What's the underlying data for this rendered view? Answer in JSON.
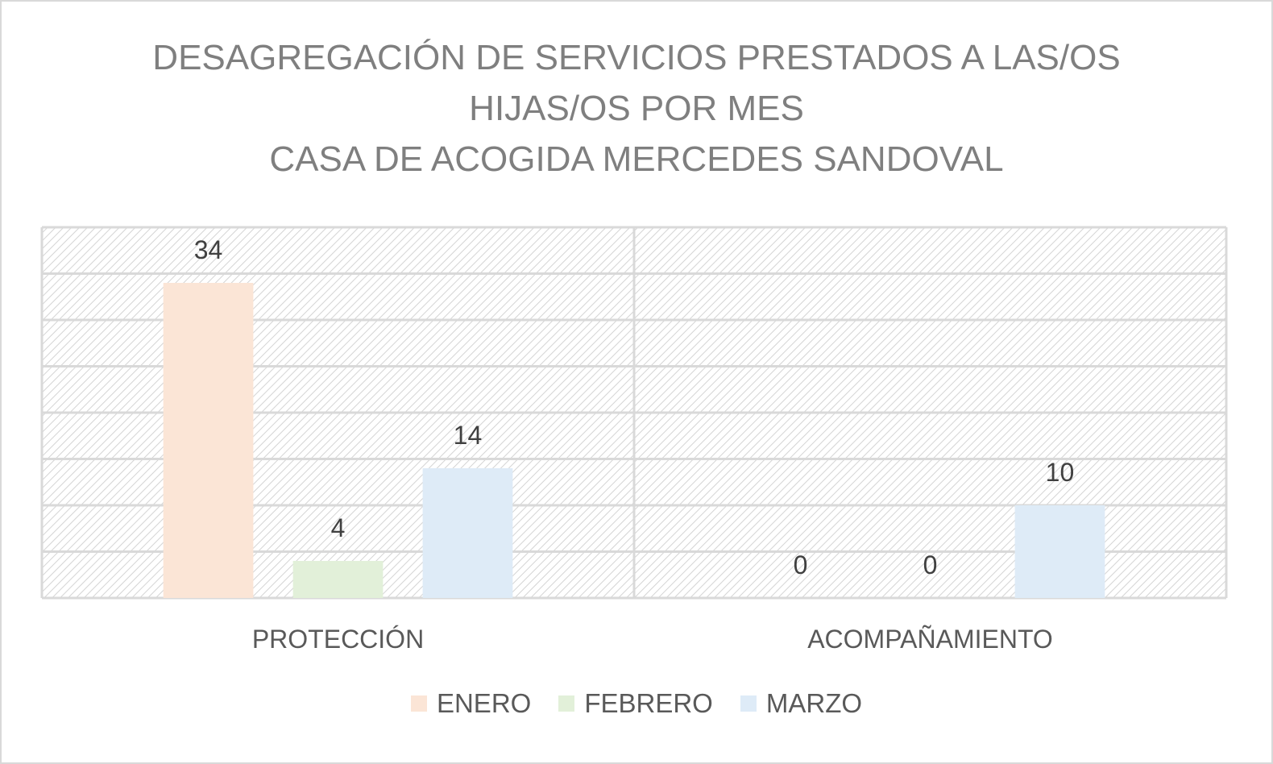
{
  "chart_data": {
    "type": "bar",
    "title_lines": [
      "DESAGREGACIÓN DE SERVICIOS PRESTADOS A LAS/OS",
      "HIJAS/OS POR MES",
      "CASA DE ACOGIDA MERCEDES SANDOVAL"
    ],
    "categories": [
      "PROTECCIÓN",
      "ACOMPAÑAMIENTO"
    ],
    "series": [
      {
        "name": "ENERO",
        "values": [
          34,
          0
        ],
        "color": "#fbe5d6"
      },
      {
        "name": "FEBRERO",
        "values": [
          4,
          0
        ],
        "color": "#e2f0d9"
      },
      {
        "name": "MARZO",
        "values": [
          14,
          10
        ],
        "color": "#deebf7"
      }
    ],
    "ylim": [
      0,
      40
    ],
    "y_tick_step": 5,
    "grid": true,
    "legend_position": "bottom",
    "data_labels": true
  }
}
